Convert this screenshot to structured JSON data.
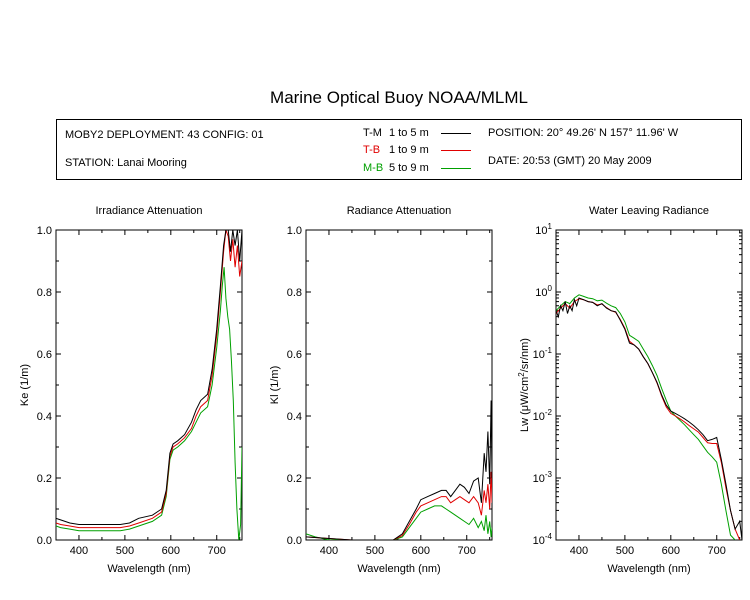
{
  "title": "Marine Optical Buoy NOAA/MLML",
  "info": {
    "deployment": "MOBY2 DEPLOYMENT: 43 CONFIG: 01",
    "station": "STATION: Lanai Mooring",
    "position": "POSITION: 20° 49.26' N   157° 11.96' W",
    "date": "DATE: 20:53 (GMT) 20 May 2009"
  },
  "legend": [
    {
      "code": "T-M",
      "range": "1 to 5  m",
      "color": "#000000",
      "code_color": "#000000"
    },
    {
      "code": "T-B",
      "range": "1 to 9  m",
      "color": "#e00000",
      "code_color": "#e00000"
    },
    {
      "code": "M-B",
      "range": "5 to 9  m",
      "color": "#00a000",
      "code_color": "#00a000"
    }
  ],
  "chart_data": [
    {
      "type": "line",
      "title": "Irradiance Attenuation",
      "xlabel": "Wavelength (nm)",
      "ylabel": "Ke  (1/m)",
      "xlim": [
        350,
        755
      ],
      "ylim": [
        0,
        1.0
      ],
      "xticks": [
        400,
        500,
        600,
        700
      ],
      "yticks": [
        0.0,
        0.2,
        0.4,
        0.6,
        0.8,
        1.0
      ],
      "ytick_labels": [
        "0.0",
        "0.2",
        "0.4",
        "0.6",
        "0.8",
        "1.0"
      ],
      "series": [
        {
          "name": "T-M",
          "color": "#000000",
          "x": [
            350,
            360,
            380,
            400,
            430,
            460,
            490,
            510,
            530,
            560,
            580,
            590,
            598,
            605,
            615,
            630,
            645,
            655,
            665,
            680,
            690,
            700,
            708,
            715,
            720,
            725,
            730,
            735,
            740,
            745,
            750,
            755
          ],
          "y": [
            0.07,
            0.065,
            0.055,
            0.05,
            0.05,
            0.05,
            0.05,
            0.055,
            0.07,
            0.08,
            0.1,
            0.16,
            0.28,
            0.31,
            0.32,
            0.34,
            0.38,
            0.42,
            0.45,
            0.47,
            0.55,
            0.68,
            0.82,
            0.95,
            1.0,
            1.0,
            0.93,
            1.0,
            0.95,
            1.0,
            0.9,
            1.0
          ]
        },
        {
          "name": "T-B",
          "color": "#e00000",
          "x": [
            350,
            360,
            380,
            400,
            430,
            460,
            490,
            510,
            530,
            560,
            580,
            590,
            598,
            605,
            615,
            630,
            645,
            655,
            665,
            680,
            690,
            700,
            708,
            715,
            720,
            725,
            730,
            735,
            740,
            745,
            750,
            755
          ],
          "y": [
            0.055,
            0.05,
            0.045,
            0.04,
            0.04,
            0.04,
            0.04,
            0.045,
            0.055,
            0.07,
            0.09,
            0.15,
            0.27,
            0.3,
            0.31,
            0.33,
            0.36,
            0.4,
            0.43,
            0.45,
            0.53,
            0.66,
            0.8,
            0.93,
            1.0,
            0.98,
            0.9,
            0.97,
            0.88,
            0.95,
            0.85,
            0.9
          ]
        },
        {
          "name": "M-B",
          "color": "#00a000",
          "x": [
            350,
            360,
            380,
            400,
            430,
            460,
            490,
            510,
            530,
            560,
            580,
            590,
            598,
            605,
            615,
            630,
            645,
            655,
            665,
            680,
            690,
            700,
            708,
            712,
            716,
            720,
            724,
            728,
            732,
            736,
            740,
            744,
            748,
            752,
            755
          ],
          "y": [
            0.045,
            0.04,
            0.035,
            0.03,
            0.03,
            0.03,
            0.03,
            0.035,
            0.045,
            0.06,
            0.08,
            0.14,
            0.26,
            0.29,
            0.3,
            0.32,
            0.35,
            0.38,
            0.41,
            0.43,
            0.5,
            0.62,
            0.74,
            0.82,
            0.88,
            0.78,
            0.72,
            0.68,
            0.58,
            0.45,
            0.25,
            0.1,
            0.0,
            0.05,
            0.3
          ]
        }
      ]
    },
    {
      "type": "line",
      "title": "Radiance Attenuation",
      "xlabel": "Wavelength (nm)",
      "ylabel": "Kl  (1/m)",
      "xlim": [
        350,
        755
      ],
      "ylim": [
        0,
        1.0
      ],
      "xticks": [
        400,
        500,
        600,
        700
      ],
      "yticks": [
        0.0,
        0.2,
        0.4,
        0.6,
        0.8,
        1.0
      ],
      "ytick_labels": [
        "0.0",
        "0.2",
        "0.4",
        "0.6",
        "0.8",
        "1.0"
      ],
      "series": [
        {
          "name": "T-M",
          "color": "#000000",
          "x": [
            350,
            400,
            450,
            500,
            540,
            560,
            575,
            590,
            600,
            615,
            630,
            645,
            655,
            665,
            675,
            685,
            695,
            705,
            715,
            725,
            732,
            738,
            742,
            746,
            750,
            753,
            755
          ],
          "y": [
            0.01,
            0.005,
            0.0,
            0.0,
            0.0,
            0.02,
            0.06,
            0.1,
            0.13,
            0.14,
            0.15,
            0.16,
            0.16,
            0.14,
            0.16,
            0.18,
            0.17,
            0.15,
            0.19,
            0.2,
            0.12,
            0.28,
            0.22,
            0.35,
            0.18,
            0.45,
            0.2
          ]
        },
        {
          "name": "T-B",
          "color": "#e00000",
          "x": [
            350,
            400,
            450,
            500,
            540,
            560,
            575,
            590,
            600,
            615,
            630,
            645,
            655,
            665,
            675,
            685,
            695,
            705,
            715,
            725,
            732,
            738,
            742,
            746,
            750,
            753,
            755
          ],
          "y": [
            0.01,
            0.005,
            0.0,
            0.0,
            0.0,
            0.015,
            0.05,
            0.09,
            0.11,
            0.12,
            0.13,
            0.14,
            0.14,
            0.12,
            0.13,
            0.14,
            0.13,
            0.12,
            0.14,
            0.12,
            0.08,
            0.16,
            0.12,
            0.18,
            0.1,
            0.22,
            0.12
          ]
        },
        {
          "name": "M-B",
          "color": "#00a000",
          "x": [
            350,
            370,
            400,
            450,
            500,
            540,
            560,
            575,
            590,
            600,
            615,
            630,
            645,
            655,
            665,
            675,
            685,
            695,
            705,
            715,
            725,
            732,
            738,
            742,
            746,
            750,
            753,
            755
          ],
          "y": [
            0.02,
            0.01,
            0.0,
            0.0,
            0.0,
            0.0,
            0.01,
            0.04,
            0.07,
            0.09,
            0.1,
            0.11,
            0.11,
            0.1,
            0.09,
            0.08,
            0.07,
            0.06,
            0.05,
            0.07,
            0.04,
            0.06,
            0.03,
            0.08,
            0.02,
            0.06,
            0.01,
            0.04
          ]
        }
      ]
    },
    {
      "type": "line",
      "title": "Water Leaving Radiance",
      "xlabel": "Wavelength (nm)",
      "ylabel": "Lw  (μW/cm²/sr/nm)",
      "ylabel_base": "Lw  (μW/cm",
      "ylabel_sup": "2",
      "ylabel_tail": "/sr/nm)",
      "xlim": [
        350,
        755
      ],
      "ylim": [
        0.0001,
        10
      ],
      "yscale": "log",
      "xticks": [
        400,
        500,
        600,
        700
      ],
      "yticks": [
        0.0001,
        0.001,
        0.01,
        0.1,
        1,
        10
      ],
      "ytick_exponents": [
        "-4",
        "-3",
        "-2",
        "-1",
        "0",
        "1"
      ],
      "ytick_base": "10",
      "series": [
        {
          "name": "T-M",
          "color": "#000000",
          "x": [
            350,
            355,
            360,
            365,
            370,
            375,
            380,
            385,
            390,
            395,
            400,
            410,
            420,
            430,
            440,
            450,
            460,
            470,
            480,
            490,
            500,
            510,
            520,
            530,
            540,
            550,
            560,
            570,
            580,
            590,
            600,
            610,
            620,
            630,
            640,
            650,
            660,
            670,
            680,
            690,
            700,
            710,
            720,
            730,
            740,
            750,
            755
          ],
          "y": [
            0.5,
            0.4,
            0.6,
            0.5,
            0.7,
            0.45,
            0.6,
            0.5,
            0.75,
            0.6,
            0.8,
            0.75,
            0.7,
            0.68,
            0.6,
            0.65,
            0.55,
            0.5,
            0.48,
            0.35,
            0.25,
            0.15,
            0.14,
            0.12,
            0.09,
            0.07,
            0.05,
            0.035,
            0.022,
            0.015,
            0.012,
            0.011,
            0.01,
            0.009,
            0.008,
            0.007,
            0.006,
            0.005,
            0.004,
            0.0042,
            0.0045,
            0.002,
            0.0008,
            0.0003,
            0.00015,
            0.0002,
            0.0001
          ]
        },
        {
          "name": "T-B",
          "color": "#e00000",
          "x": [
            350,
            360,
            370,
            380,
            390,
            400,
            410,
            420,
            430,
            440,
            450,
            460,
            470,
            480,
            490,
            500,
            510,
            520,
            530,
            540,
            550,
            560,
            570,
            580,
            590,
            600,
            610,
            620,
            630,
            640,
            650,
            660,
            670,
            680,
            690,
            700,
            710,
            720,
            730,
            740,
            750
          ],
          "y": [
            0.45,
            0.55,
            0.65,
            0.55,
            0.7,
            0.78,
            0.75,
            0.7,
            0.68,
            0.62,
            0.64,
            0.56,
            0.5,
            0.47,
            0.36,
            0.26,
            0.16,
            0.14,
            0.12,
            0.09,
            0.07,
            0.05,
            0.034,
            0.021,
            0.014,
            0.011,
            0.01,
            0.009,
            0.008,
            0.007,
            0.0062,
            0.0055,
            0.0045,
            0.0037,
            0.0036,
            0.0036,
            0.0018,
            0.0007,
            0.0003,
            0.00015,
            0.0001
          ]
        },
        {
          "name": "M-B",
          "color": "#00a000",
          "x": [
            350,
            360,
            370,
            380,
            390,
            400,
            410,
            420,
            430,
            440,
            450,
            460,
            470,
            480,
            490,
            500,
            510,
            520,
            530,
            540,
            550,
            560,
            570,
            580,
            590,
            600,
            610,
            620,
            630,
            640,
            650,
            660,
            670,
            680,
            690,
            700,
            710,
            720,
            730,
            740
          ],
          "y": [
            0.5,
            0.6,
            0.7,
            0.65,
            0.8,
            0.9,
            0.85,
            0.8,
            0.78,
            0.72,
            0.74,
            0.66,
            0.6,
            0.56,
            0.45,
            0.33,
            0.2,
            0.18,
            0.16,
            0.12,
            0.09,
            0.065,
            0.045,
            0.028,
            0.018,
            0.012,
            0.01,
            0.0085,
            0.0072,
            0.006,
            0.005,
            0.0042,
            0.0033,
            0.0026,
            0.0022,
            0.0018,
            0.0008,
            0.0003,
            0.00012,
            0.0001
          ]
        }
      ]
    }
  ]
}
